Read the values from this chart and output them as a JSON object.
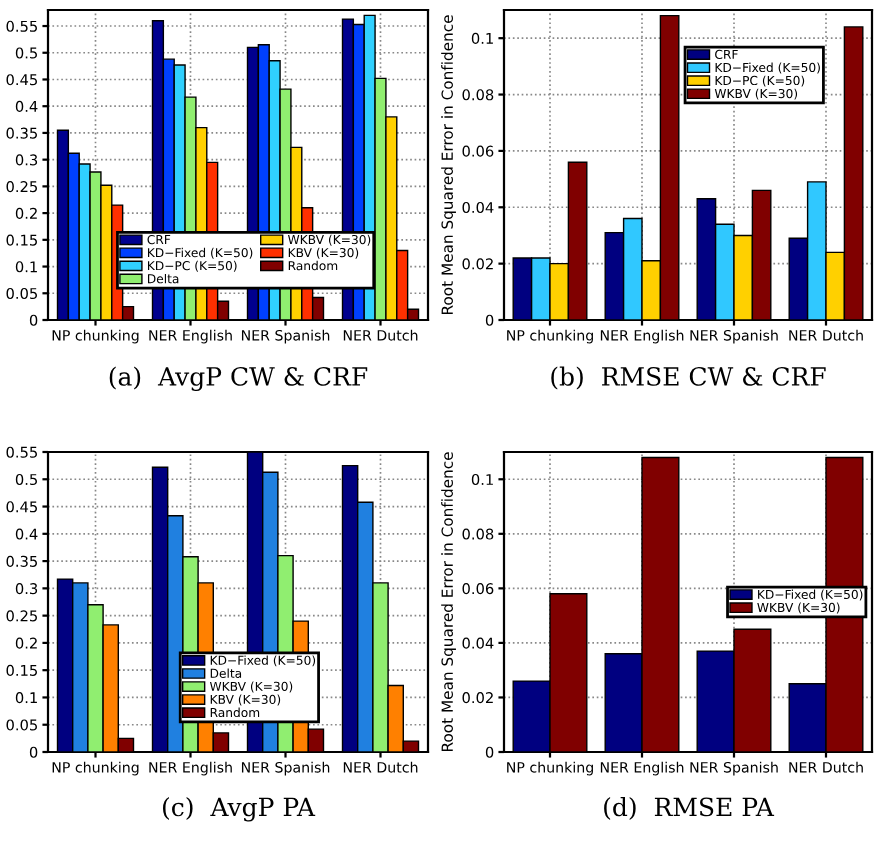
{
  "chart_data": [
    {
      "type": "bar",
      "title": "(a)  AvgP CW & CRF",
      "categories": [
        "NP chunking",
        "NER English",
        "NER Spanish",
        "NER Dutch"
      ],
      "ylim": [
        0,
        0.58
      ],
      "yticks": [
        0,
        0.05,
        0.1,
        0.15,
        0.2,
        0.25,
        0.3,
        0.35,
        0.4,
        0.45,
        0.5,
        0.55
      ],
      "grid": true,
      "legend": "lower center",
      "series": [
        {
          "name": "CRF",
          "color": "#00008f",
          "values": [
            0.355,
            0.56,
            0.51,
            0.563
          ]
        },
        {
          "name": "KD−Fixed (K=50)",
          "color": "#0040ff",
          "values": [
            0.312,
            0.488,
            0.515,
            0.553
          ]
        },
        {
          "name": "KD−PC (K=50)",
          "color": "#30d0ff",
          "values": [
            0.292,
            0.477,
            0.485,
            0.57
          ]
        },
        {
          "name": "Delta",
          "color": "#90ee70",
          "values": [
            0.277,
            0.417,
            0.432,
            0.452
          ]
        },
        {
          "name": "WKBV (K=30)",
          "color": "#ffd000",
          "values": [
            0.252,
            0.36,
            0.323,
            0.38
          ]
        },
        {
          "name": "KBV (K=30)",
          "color": "#ff3000",
          "values": [
            0.215,
            0.295,
            0.21,
            0.13
          ]
        },
        {
          "name": "Random",
          "color": "#800000",
          "values": [
            0.025,
            0.035,
            0.042,
            0.02
          ]
        }
      ]
    },
    {
      "type": "bar",
      "title": "(b)  RMSE CW & CRF",
      "ylabel": "Root Mean Squared Error in Confidence",
      "categories": [
        "NP chunking",
        "NER English",
        "NER Spanish",
        "NER Dutch"
      ],
      "ylim": [
        0,
        0.11
      ],
      "yticks": [
        0,
        0.02,
        0.04,
        0.06,
        0.08,
        0.1
      ],
      "grid": true,
      "legend": "upper center",
      "series": [
        {
          "name": "CRF",
          "color": "#000080",
          "values": [
            0.022,
            0.031,
            0.043,
            0.029
          ]
        },
        {
          "name": "KD−Fixed (K=50)",
          "color": "#30c8ff",
          "values": [
            0.022,
            0.036,
            0.034,
            0.049
          ]
        },
        {
          "name": "KD−PC (K=50)",
          "color": "#ffd000",
          "values": [
            0.02,
            0.021,
            0.03,
            0.024
          ]
        },
        {
          "name": "WKBV (K=30)",
          "color": "#800000",
          "values": [
            0.056,
            0.108,
            0.046,
            0.104
          ]
        }
      ]
    },
    {
      "type": "bar",
      "title": "(c)  AvgP PA",
      "categories": [
        "NP chunking",
        "NER English",
        "NER Spanish",
        "NER Dutch"
      ],
      "ylim": [
        0,
        0.55
      ],
      "yticks": [
        0,
        0.05,
        0.1,
        0.15,
        0.2,
        0.25,
        0.3,
        0.35,
        0.4,
        0.45,
        0.5,
        0.55
      ],
      "grid": true,
      "legend": "lower center",
      "series": [
        {
          "name": "KD−Fixed (K=50)",
          "color": "#000080",
          "values": [
            0.317,
            0.522,
            0.55,
            0.525
          ]
        },
        {
          "name": "Delta",
          "color": "#2080e0",
          "values": [
            0.31,
            0.433,
            0.513,
            0.458
          ]
        },
        {
          "name": "WKBV (K=30)",
          "color": "#90ee70",
          "values": [
            0.27,
            0.358,
            0.36,
            0.31
          ]
        },
        {
          "name": "KBV (K=30)",
          "color": "#ff8000",
          "values": [
            0.233,
            0.31,
            0.24,
            0.122
          ]
        },
        {
          "name": "Random",
          "color": "#800000",
          "values": [
            0.025,
            0.035,
            0.042,
            0.02
          ]
        }
      ]
    },
    {
      "type": "bar",
      "title": "(d)  RMSE PA",
      "ylabel": "Root Mean Squared Error in Confidence",
      "categories": [
        "NP chunking",
        "NER English",
        "NER Spanish",
        "NER Dutch"
      ],
      "ylim": [
        0,
        0.11
      ],
      "yticks": [
        0,
        0.02,
        0.04,
        0.06,
        0.08,
        0.1
      ],
      "grid": true,
      "legend": "center right",
      "series": [
        {
          "name": "KD−Fixed (K=50)",
          "color": "#000080",
          "values": [
            0.026,
            0.036,
            0.037,
            0.025
          ]
        },
        {
          "name": "WKBV (K=30)",
          "color": "#800000",
          "values": [
            0.058,
            0.108,
            0.045,
            0.108
          ]
        }
      ]
    }
  ]
}
